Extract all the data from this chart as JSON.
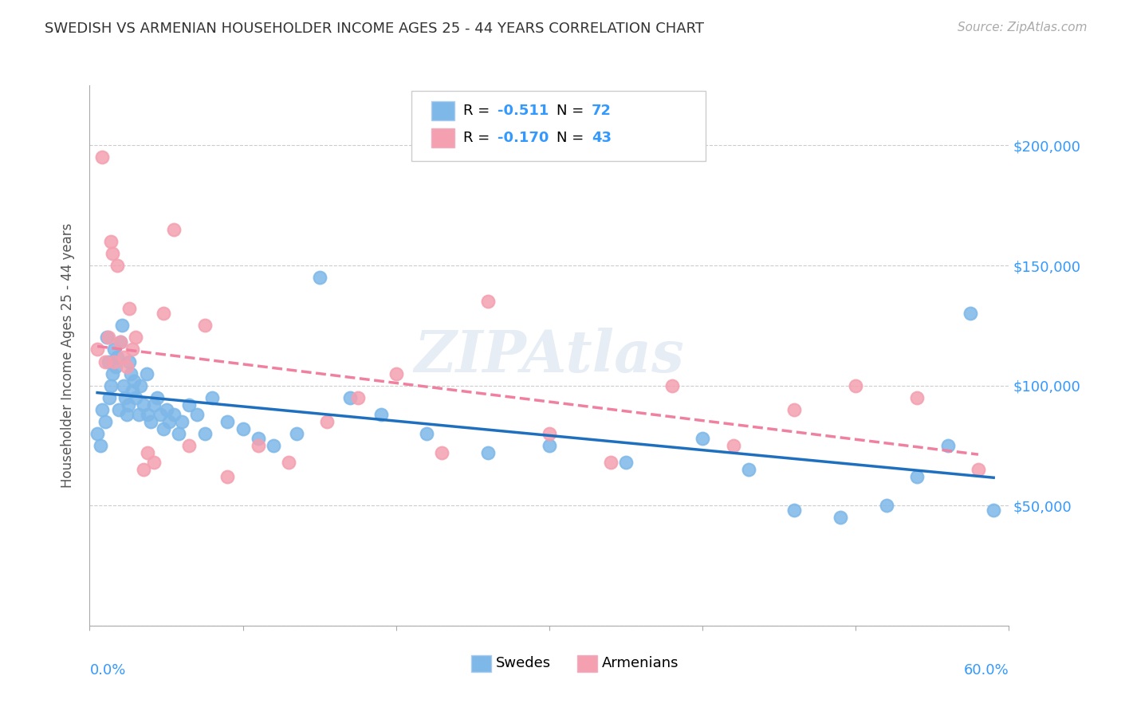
{
  "title": "SWEDISH VS ARMENIAN HOUSEHOLDER INCOME AGES 25 - 44 YEARS CORRELATION CHART",
  "source": "Source: ZipAtlas.com",
  "ylabel": "Householder Income Ages 25 - 44 years",
  "watermark": "ZIPAtlas",
  "xlim": [
    0.0,
    0.6
  ],
  "ylim": [
    0,
    225000
  ],
  "yticks": [
    0,
    50000,
    100000,
    150000,
    200000
  ],
  "ytick_labels": [
    "",
    "$50,000",
    "$100,000",
    "$150,000",
    "$200,000"
  ],
  "swede_color": "#7eb8e8",
  "armenian_color": "#f4a0b0",
  "swede_line_color": "#1f6fbf",
  "armenian_line_color": "#f080a0",
  "background_color": "#ffffff",
  "swedes_x": [
    0.005,
    0.007,
    0.008,
    0.01,
    0.011,
    0.012,
    0.013,
    0.014,
    0.015,
    0.016,
    0.017,
    0.018,
    0.019,
    0.02,
    0.021,
    0.022,
    0.023,
    0.024,
    0.025,
    0.026,
    0.027,
    0.028,
    0.029,
    0.03,
    0.032,
    0.033,
    0.035,
    0.037,
    0.038,
    0.04,
    0.042,
    0.044,
    0.046,
    0.048,
    0.05,
    0.052,
    0.055,
    0.058,
    0.06,
    0.065,
    0.07,
    0.075,
    0.08,
    0.09,
    0.1,
    0.11,
    0.12,
    0.135,
    0.15,
    0.17,
    0.19,
    0.22,
    0.26,
    0.3,
    0.35,
    0.4,
    0.43,
    0.46,
    0.49,
    0.52,
    0.54,
    0.56,
    0.575,
    0.59
  ],
  "swedes_y": [
    80000,
    75000,
    90000,
    85000,
    120000,
    110000,
    95000,
    100000,
    105000,
    115000,
    108000,
    112000,
    90000,
    118000,
    125000,
    100000,
    95000,
    88000,
    92000,
    110000,
    105000,
    98000,
    102000,
    95000,
    88000,
    100000,
    92000,
    105000,
    88000,
    85000,
    92000,
    95000,
    88000,
    82000,
    90000,
    85000,
    88000,
    80000,
    85000,
    92000,
    88000,
    80000,
    95000,
    85000,
    82000,
    78000,
    75000,
    80000,
    145000,
    95000,
    88000,
    80000,
    72000,
    75000,
    68000,
    78000,
    65000,
    48000,
    45000,
    50000,
    62000,
    75000,
    130000,
    48000
  ],
  "armenians_x": [
    0.005,
    0.008,
    0.01,
    0.012,
    0.014,
    0.015,
    0.016,
    0.018,
    0.02,
    0.022,
    0.024,
    0.026,
    0.028,
    0.03,
    0.035,
    0.038,
    0.042,
    0.048,
    0.055,
    0.065,
    0.075,
    0.09,
    0.11,
    0.13,
    0.155,
    0.175,
    0.2,
    0.23,
    0.26,
    0.3,
    0.34,
    0.38,
    0.42,
    0.46,
    0.5,
    0.54,
    0.58
  ],
  "armenians_y": [
    115000,
    195000,
    110000,
    120000,
    160000,
    155000,
    110000,
    150000,
    118000,
    112000,
    108000,
    132000,
    115000,
    120000,
    65000,
    72000,
    68000,
    130000,
    165000,
    75000,
    125000,
    62000,
    75000,
    68000,
    85000,
    95000,
    105000,
    72000,
    135000,
    80000,
    68000,
    100000,
    75000,
    90000,
    100000,
    95000,
    65000
  ]
}
